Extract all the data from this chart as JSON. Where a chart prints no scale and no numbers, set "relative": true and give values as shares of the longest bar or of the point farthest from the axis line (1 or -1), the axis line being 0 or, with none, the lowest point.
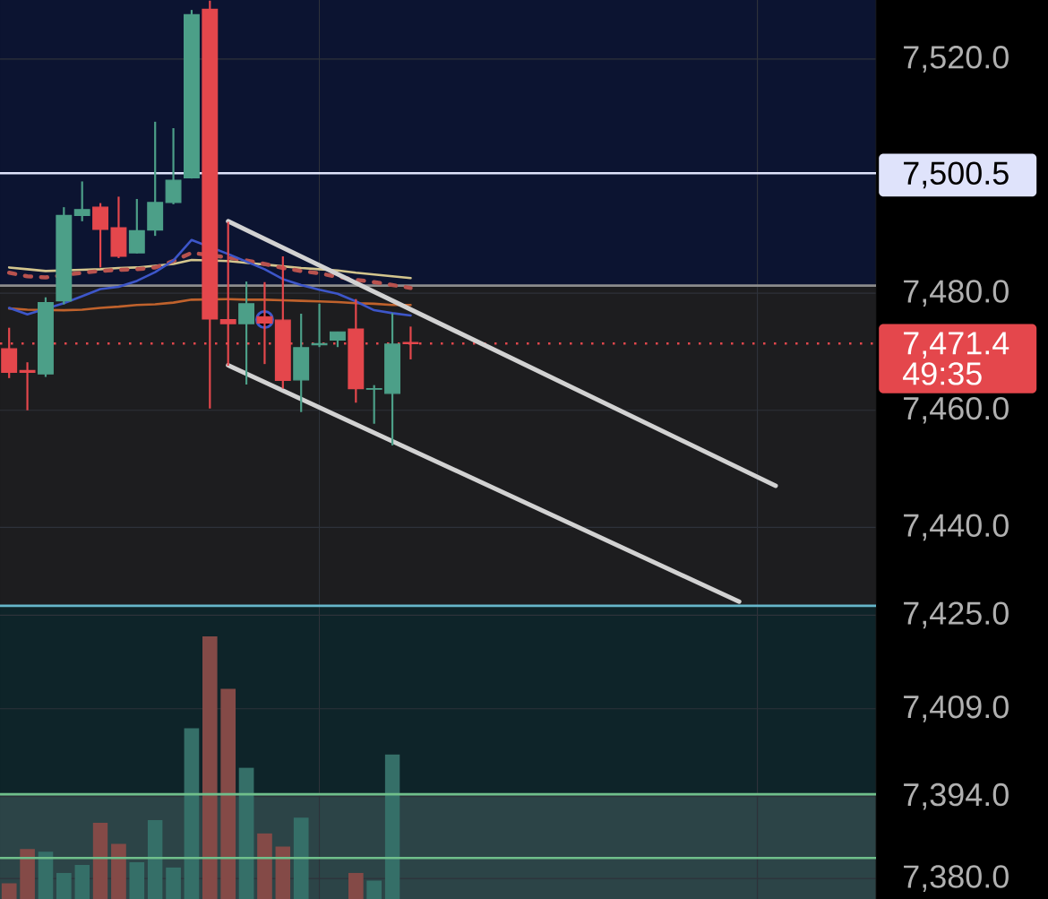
{
  "chart_data": [
    {
      "type": "candlestick",
      "categories": [
        null,
        null,
        null,
        null,
        null,
        null,
        null,
        null,
        null,
        null,
        null,
        null,
        null,
        null,
        null,
        null,
        null,
        null,
        null,
        null,
        null,
        null,
        null,
        null,
        null,
        null,
        null,
        null,
        null,
        null,
        null,
        null,
        null,
        null,
        null,
        null,
        null,
        null,
        null,
        null,
        null,
        null,
        null,
        null,
        null,
        null,
        null,
        null
      ],
      "ohlc": [
        [
          7470.5,
          7474.1,
          7465.5,
          7466.5
        ],
        [
          7466.8,
          7468.2,
          7460.0,
          7466.5
        ],
        [
          7466.2,
          7479.3,
          7465.7,
          7478.4
        ],
        [
          7478.7,
          7494.7,
          7478.1,
          7493.3
        ],
        [
          7493.3,
          7499.1,
          7492.3,
          7494.3
        ],
        [
          7494.7,
          7495.4,
          7484.4,
          7490.9
        ],
        [
          7491.2,
          7496.5,
          7486.0,
          7486.3
        ],
        [
          7486.9,
          7496.1,
          7486.8,
          7490.7
        ],
        [
          7490.8,
          7509.3,
          7489.8,
          7495.5
        ],
        [
          7495.5,
          7508.2,
          7495.2,
          7499.3
        ],
        [
          7499.7,
          7528.4,
          7499.6,
          7527.6
        ],
        [
          7528.5,
          7530.0,
          7460.3,
          7475.6
        ],
        [
          7475.5,
          7492.2,
          7467.6,
          7474.8
        ],
        [
          7474.8,
          7482.0,
          7464.4,
          7478.2
        ],
        [
          7476.0,
          7481.9,
          7467.9,
          7474.9
        ],
        [
          7475.4,
          7486.3,
          7463.7,
          7465.1
        ],
        [
          7465.2,
          7476.5,
          7459.7,
          7470.7
        ],
        [
          7471.2,
          7478.2,
          7470.8,
          7471.4
        ],
        [
          7472.0,
          7473.4,
          7470.8,
          7473.4
        ],
        [
          7473.9,
          7479.0,
          7461.3,
          7463.7
        ],
        [
          7463.6,
          7464.3,
          7457.7,
          7463.7
        ],
        [
          7462.9,
          7476.6,
          7454.0,
          7471.3
        ],
        [
          7471.6,
          7474.3,
          7468.7,
          7471.4
        ],
        null,
        null,
        null,
        null,
        null,
        null,
        null,
        null,
        null,
        null,
        null,
        null,
        null,
        null,
        null,
        null,
        null,
        null,
        null,
        null,
        null,
        null,
        null,
        null,
        null
      ],
      "colors": [
        "#e4474c",
        "#e4474c",
        "#4c9f88",
        "#4c9f88",
        "#4c9f88",
        "#e4474c",
        "#e4474c",
        "#4c9f88",
        "#4c9f88",
        "#4c9f88",
        "#4c9f88",
        "#e4474c",
        "#e4474c",
        "#4c9f88",
        "#e4474c",
        "#e4474c",
        "#4c9f88",
        "#4c9f88",
        "#4c9f88",
        "#e4474c",
        "#4c9f88",
        "#4c9f88",
        "#e4474c",
        null,
        null,
        null,
        null,
        null,
        null,
        null,
        null,
        null,
        null,
        null,
        null,
        null,
        null,
        null,
        null,
        null,
        null,
        null,
        null,
        null,
        null,
        null,
        null,
        null
      ],
      "series": [
        {
          "type": "line",
          "color": "#d4c68e",
          "values": [
            7484.4,
            7484.1,
            7483.8,
            null,
            7484.0,
            7484.1,
            7484.3,
            7484.4,
            7484.7,
            7485.0,
            7485.7,
            null,
            7485.5,
            7485.2,
            7484.9,
            7484.6,
            7484.3,
            7484.1,
            7483.9,
            7483.5,
            7483.2,
            7482.9,
            7482.6,
            null,
            null,
            null,
            null,
            null,
            null,
            null,
            null,
            null,
            null,
            null,
            null,
            null,
            null,
            null,
            null,
            null,
            null,
            null,
            null,
            null,
            null,
            null,
            null,
            null
          ]
        },
        {
          "type": "line",
          "color": "#b8524e",
          "line_style": "dashed",
          "values": [
            7483.5,
            7482.9,
            7482.7,
            null,
            7483.5,
            7483.8,
            7484.0,
            7484.1,
            7484.4,
            7485.5,
            7486.9,
            null,
            7486.1,
            7485.6,
            7485.0,
            7484.3,
            7483.8,
            7483.4,
            7482.8,
            7482.3,
            7481.9,
            7481.4,
            7480.9,
            null,
            null,
            null,
            null,
            null,
            null,
            null,
            null,
            null,
            null,
            null,
            null,
            null,
            null,
            null,
            null,
            null,
            null,
            null,
            null,
            null,
            null,
            null,
            null,
            null
          ]
        },
        {
          "type": "line",
          "color": "#c0622c",
          "values": [
            7477.4,
            7477.2,
            null,
            7477.1,
            7477.2,
            7477.5,
            7477.7,
            7478.0,
            7478.1,
            7478.4,
            7478.9,
            null,
            7479.0,
            7478.9,
            7478.9,
            7478.8,
            7478.7,
            7478.6,
            7478.5,
            7478.3,
            7478.2,
            7478.0,
            7478.0,
            null,
            null,
            null,
            null,
            null,
            null,
            null,
            null,
            null,
            null,
            null,
            null,
            null,
            null,
            null,
            null,
            null,
            null,
            null,
            null,
            null,
            null,
            null,
            null,
            null
          ]
        },
        {
          "type": "line",
          "color": "#3d56c9",
          "values": [
            7477.5,
            7476.4,
            null,
            7478.3,
            7479.5,
            7480.7,
            7481.1,
            7482.1,
            7483.6,
            7485.6,
            7489.1,
            null,
            7486.7,
            7485.4,
            7484.1,
            7482.4,
            7481.4,
            7480.6,
            7479.9,
            7478.6,
            7477.1,
            7476.6,
            7476.2,
            null,
            null,
            null,
            null,
            null,
            null,
            null,
            null,
            null,
            null,
            null,
            null,
            null,
            null,
            null,
            null,
            null,
            null,
            null,
            null,
            null,
            null,
            null,
            null,
            null
          ]
        },
        {
          "type": "line",
          "color": "#d2d2d2",
          "values": [
            null,
            null,
            null,
            null,
            null,
            null,
            null,
            null,
            null,
            null,
            null,
            null,
            7492.3,
            null,
            null,
            null,
            null,
            null,
            null,
            null,
            null,
            null,
            null,
            null,
            null,
            null,
            null,
            null,
            null,
            null,
            null,
            null,
            null,
            null,
            null,
            null,
            null,
            null,
            null,
            null,
            null,
            null,
            7447.1,
            null,
            null,
            null,
            null,
            null
          ]
        },
        {
          "type": "line",
          "color": "#d2d2d2",
          "values": [
            null,
            null,
            null,
            null,
            null,
            null,
            null,
            null,
            null,
            null,
            null,
            null,
            7467.7,
            null,
            null,
            null,
            null,
            null,
            null,
            null,
            null,
            null,
            null,
            null,
            null,
            null,
            null,
            null,
            null,
            null,
            null,
            null,
            null,
            null,
            null,
            null,
            null,
            null,
            null,
            null,
            7427.3,
            null,
            null,
            null,
            null,
            null,
            null,
            null
          ]
        },
        {
          "type": "scatter",
          "color": "#3d56c9",
          "marker": "circle",
          "values": [
            null,
            null,
            null,
            null,
            null,
            null,
            null,
            null,
            null,
            null,
            null,
            null,
            null,
            null,
            7475.5,
            null,
            null,
            null,
            null,
            null,
            null,
            null,
            null,
            null,
            null,
            null,
            null,
            null,
            null,
            null,
            null,
            null,
            null,
            null,
            null,
            null,
            null,
            null,
            null,
            null,
            null,
            null,
            null,
            null,
            null,
            null,
            null,
            null
          ]
        }
      ],
      "ylim": [
        7376.5,
        7530.1
      ],
      "yticks": [
        {
          "value": 7520,
          "label": "7,520.0"
        },
        {
          "value": 7480,
          "label": "7,480.0"
        },
        {
          "value": 7460,
          "label": "7,460.0"
        },
        {
          "value": 7440,
          "label": "7,440.0"
        },
        {
          "value": 7425,
          "label": "7,425.0"
        },
        {
          "value": 7409,
          "label": "7,409.0"
        },
        {
          "value": 7394,
          "label": "7,394.0"
        },
        {
          "value": 7380,
          "label": "7,380.0"
        }
      ],
      "tick_labels": "y",
      "grid": true,
      "ref_lines": [
        {
          "axis": "y",
          "value": 7500.5,
          "label": "7,500.5",
          "color": "#dfe3fb"
        },
        {
          "axis": "y",
          "value": 7481.3,
          "color": "#8c8c8c"
        },
        {
          "axis": "y",
          "value": 7471.4,
          "label": "7,471.4 49:35",
          "color": "#e4474c",
          "line_style": "dotted"
        },
        {
          "axis": "y",
          "value": 7426.6,
          "color": "#66b6ca"
        },
        {
          "axis": "y",
          "value": 7394.4,
          "color": "#70bf8b"
        },
        {
          "axis": "y",
          "value": 7383.5,
          "color": "#70bf8b"
        }
      ],
      "bands": [
        {
          "axis": "y",
          "from": 7481.3,
          "to": 7530.1,
          "color": "#0c1431"
        },
        {
          "axis": "y",
          "from": 7426.6,
          "to": 7481.3,
          "color": "#1d1d1f"
        },
        {
          "axis": "y",
          "from": 7394.4,
          "to": 7426.6,
          "color": "#0e2429"
        },
        {
          "axis": "y",
          "from": 7376.5,
          "to": 7394.4,
          "color": "#2c4447"
        }
      ]
    },
    {
      "type": "bar",
      "relative": true,
      "tick_labels": false,
      "categories": [
        null,
        null,
        null,
        null,
        null,
        null,
        null,
        null,
        null,
        null,
        null,
        null,
        null,
        null,
        null,
        null,
        null,
        null,
        null,
        null,
        null,
        null,
        null,
        null,
        null,
        null,
        null,
        null,
        null,
        null,
        null,
        null,
        null,
        null,
        null,
        null,
        null,
        null,
        null,
        null,
        null,
        null,
        null,
        null,
        null,
        null,
        null,
        null
      ],
      "values": [
        0.06,
        0.19,
        0.18,
        0.1,
        0.13,
        0.29,
        0.21,
        0.14,
        0.3,
        0.12,
        0.65,
        1,
        0.8,
        0.5,
        0.25,
        0.2,
        0.31,
        null,
        null,
        0.1,
        0.07,
        0.55,
        null,
        null,
        null,
        null,
        null,
        null,
        null,
        null,
        null,
        null,
        null,
        null,
        null,
        null,
        null,
        null,
        null,
        null,
        null,
        null,
        null,
        null,
        null,
        null,
        null,
        null
      ],
      "colors": [
        "#844a47",
        "#844a47",
        "#356f68",
        "#356f68",
        "#356f68",
        "#844a47",
        "#844a47",
        "#356f68",
        "#356f68",
        "#356f68",
        "#356f68",
        "#844a47",
        "#844a47",
        "#356f68",
        "#844a47",
        "#844a47",
        "#356f68",
        null,
        null,
        "#844a47",
        "#356f68",
        "#356f68",
        null,
        null,
        null,
        null,
        null,
        null,
        null,
        null,
        null,
        null,
        null,
        null,
        null,
        null,
        null,
        null,
        null,
        null,
        null,
        null,
        null,
        null,
        null,
        null,
        null,
        null
      ]
    }
  ]
}
